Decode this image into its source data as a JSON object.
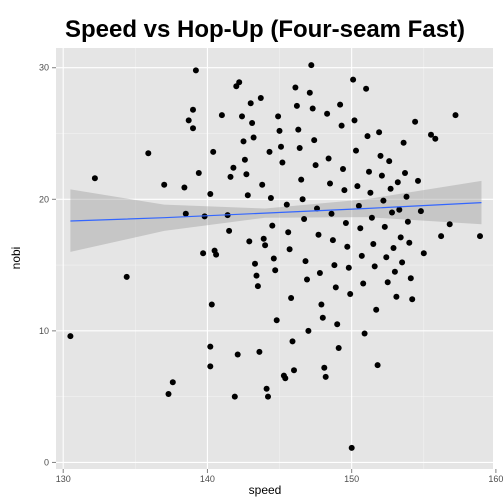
{
  "chart_data": {
    "type": "scatter",
    "title": "Speed vs Hop-Up  (Four-seam Fast)",
    "xlabel": "speed",
    "ylabel": "nobi",
    "xlim": [
      129.5,
      159.8
    ],
    "ylim": [
      -0.5,
      31.5
    ],
    "x_ticks": [
      130,
      140,
      150,
      160
    ],
    "y_ticks": [
      0,
      10,
      20,
      30
    ],
    "grid": true,
    "colors": {
      "panel": "#e5e5e5",
      "grid": "#ffffff",
      "point": "#000000",
      "fit_line": "#3366ff",
      "ribbon": "#999999"
    },
    "fit": {
      "method": "linear",
      "x": [
        130.5,
        137,
        144,
        151,
        159
      ],
      "y": [
        18.35,
        18.6,
        18.95,
        19.3,
        19.75
      ],
      "ci_lower": [
        16.0,
        17.6,
        18.6,
        18.65,
        18.1
      ],
      "ci_upper": [
        20.75,
        19.6,
        19.3,
        20.0,
        21.4
      ]
    },
    "points": [
      [
        130.5,
        9.6
      ],
      [
        132.2,
        21.6
      ],
      [
        134.4,
        14.1
      ],
      [
        135.9,
        23.5
      ],
      [
        137.0,
        21.1
      ],
      [
        137.3,
        5.2
      ],
      [
        137.6,
        6.1
      ],
      [
        138.4,
        20.9
      ],
      [
        138.5,
        18.9
      ],
      [
        138.7,
        26.0
      ],
      [
        139.0,
        26.8
      ],
      [
        139.0,
        25.4
      ],
      [
        139.2,
        29.8
      ],
      [
        139.4,
        22.0
      ],
      [
        139.7,
        15.9
      ],
      [
        139.8,
        18.7
      ],
      [
        140.2,
        20.4
      ],
      [
        140.2,
        8.8
      ],
      [
        140.2,
        7.3
      ],
      [
        140.3,
        12.0
      ],
      [
        140.4,
        23.6
      ],
      [
        140.5,
        16.1
      ],
      [
        140.6,
        15.8
      ],
      [
        141.0,
        26.4
      ],
      [
        141.4,
        18.8
      ],
      [
        141.5,
        17.6
      ],
      [
        141.6,
        21.7
      ],
      [
        141.8,
        22.4
      ],
      [
        141.9,
        5.0
      ],
      [
        142.0,
        28.6
      ],
      [
        142.1,
        8.2
      ],
      [
        142.2,
        28.9
      ],
      [
        142.4,
        26.3
      ],
      [
        142.5,
        24.4
      ],
      [
        142.6,
        23.0
      ],
      [
        142.7,
        21.9
      ],
      [
        142.8,
        20.3
      ],
      [
        142.9,
        16.8
      ],
      [
        143.0,
        27.3
      ],
      [
        143.1,
        25.8
      ],
      [
        143.2,
        24.7
      ],
      [
        143.3,
        15.1
      ],
      [
        143.4,
        14.2
      ],
      [
        143.5,
        13.4
      ],
      [
        143.6,
        8.4
      ],
      [
        143.7,
        27.7
      ],
      [
        143.8,
        21.1
      ],
      [
        143.9,
        17.0
      ],
      [
        144.0,
        16.5
      ],
      [
        144.1,
        5.6
      ],
      [
        144.2,
        5.0
      ],
      [
        144.3,
        23.6
      ],
      [
        144.4,
        20.1
      ],
      [
        144.5,
        18.0
      ],
      [
        144.6,
        15.5
      ],
      [
        144.7,
        14.6
      ],
      [
        144.8,
        10.8
      ],
      [
        144.9,
        26.3
      ],
      [
        145.0,
        25.2
      ],
      [
        145.1,
        24.0
      ],
      [
        145.2,
        22.8
      ],
      [
        145.3,
        6.6
      ],
      [
        145.4,
        6.4
      ],
      [
        145.5,
        19.6
      ],
      [
        145.6,
        17.5
      ],
      [
        145.7,
        16.2
      ],
      [
        145.8,
        12.5
      ],
      [
        145.9,
        9.2
      ],
      [
        146.0,
        7.0
      ],
      [
        146.1,
        28.5
      ],
      [
        146.2,
        27.1
      ],
      [
        146.3,
        25.3
      ],
      [
        146.4,
        23.9
      ],
      [
        146.5,
        21.5
      ],
      [
        146.6,
        20.0
      ],
      [
        146.7,
        18.5
      ],
      [
        146.8,
        15.3
      ],
      [
        146.9,
        13.9
      ],
      [
        147.0,
        10.0
      ],
      [
        147.1,
        28.1
      ],
      [
        147.2,
        30.2
      ],
      [
        147.3,
        26.9
      ],
      [
        147.4,
        24.5
      ],
      [
        147.5,
        22.6
      ],
      [
        147.6,
        19.3
      ],
      [
        147.7,
        17.3
      ],
      [
        147.8,
        14.4
      ],
      [
        147.9,
        12.0
      ],
      [
        148.0,
        11.0
      ],
      [
        148.1,
        7.2
      ],
      [
        148.2,
        6.5
      ],
      [
        148.3,
        26.5
      ],
      [
        148.4,
        23.1
      ],
      [
        148.5,
        21.2
      ],
      [
        148.6,
        18.9
      ],
      [
        148.7,
        16.9
      ],
      [
        148.8,
        15.0
      ],
      [
        148.9,
        13.3
      ],
      [
        149.0,
        10.5
      ],
      [
        149.1,
        8.7
      ],
      [
        149.2,
        27.2
      ],
      [
        149.3,
        25.6
      ],
      [
        149.4,
        22.3
      ],
      [
        149.5,
        20.7
      ],
      [
        149.6,
        18.2
      ],
      [
        149.7,
        16.4
      ],
      [
        149.8,
        14.8
      ],
      [
        149.9,
        12.8
      ],
      [
        150.0,
        1.1
      ],
      [
        150.1,
        29.1
      ],
      [
        150.2,
        26.0
      ],
      [
        150.3,
        23.7
      ],
      [
        150.4,
        21.0
      ],
      [
        150.5,
        19.5
      ],
      [
        150.6,
        17.8
      ],
      [
        150.7,
        15.7
      ],
      [
        150.8,
        13.6
      ],
      [
        150.9,
        9.8
      ],
      [
        151.0,
        28.4
      ],
      [
        151.1,
        24.8
      ],
      [
        151.2,
        22.1
      ],
      [
        151.3,
        20.5
      ],
      [
        151.4,
        18.6
      ],
      [
        151.5,
        16.6
      ],
      [
        151.6,
        14.9
      ],
      [
        151.7,
        11.6
      ],
      [
        151.8,
        7.4
      ],
      [
        151.9,
        25.1
      ],
      [
        152.0,
        23.3
      ],
      [
        152.1,
        21.8
      ],
      [
        152.2,
        19.9
      ],
      [
        152.3,
        17.9
      ],
      [
        152.4,
        15.6
      ],
      [
        152.5,
        13.7
      ],
      [
        152.6,
        22.9
      ],
      [
        152.7,
        20.8
      ],
      [
        152.8,
        19.0
      ],
      [
        152.9,
        16.3
      ],
      [
        153.0,
        14.5
      ],
      [
        153.1,
        12.6
      ],
      [
        153.2,
        21.3
      ],
      [
        153.3,
        19.2
      ],
      [
        153.4,
        17.1
      ],
      [
        153.5,
        15.2
      ],
      [
        153.6,
        24.3
      ],
      [
        153.7,
        22.0
      ],
      [
        153.8,
        20.2
      ],
      [
        153.9,
        18.3
      ],
      [
        154.0,
        16.7
      ],
      [
        154.1,
        14.0
      ],
      [
        154.2,
        12.4
      ],
      [
        154.4,
        25.9
      ],
      [
        154.6,
        21.4
      ],
      [
        154.8,
        19.1
      ],
      [
        155.0,
        15.9
      ],
      [
        155.5,
        24.9
      ],
      [
        155.8,
        24.6
      ],
      [
        156.2,
        17.2
      ],
      [
        156.8,
        18.1
      ],
      [
        157.2,
        26.4
      ],
      [
        158.9,
        17.2
      ]
    ]
  }
}
